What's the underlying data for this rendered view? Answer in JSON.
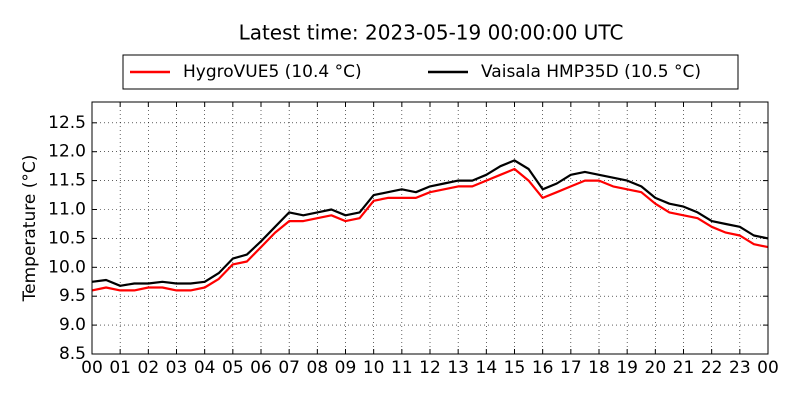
{
  "chart_data": {
    "type": "line",
    "title": "Latest time: 2023-05-19 00:00:00 UTC",
    "y_label": "Temperature (°C)",
    "x": [
      0,
      0.5,
      1,
      1.5,
      2,
      2.5,
      3,
      3.5,
      4,
      4.5,
      5,
      5.5,
      6,
      6.5,
      7,
      7.5,
      8,
      8.5,
      9,
      9.5,
      10,
      10.5,
      11,
      11.5,
      12,
      12.5,
      13,
      13.5,
      14,
      14.5,
      15,
      15.5,
      16,
      16.5,
      17,
      17.5,
      18,
      18.5,
      19,
      19.5,
      20,
      20.5,
      21,
      21.5,
      22,
      22.5,
      23,
      23.5,
      24
    ],
    "series": [
      {
        "name": "HygroVUE5 (10.4 °C)",
        "color": "#ff0000",
        "values": [
          9.6,
          9.65,
          9.6,
          9.6,
          9.65,
          9.65,
          9.6,
          9.6,
          9.65,
          9.8,
          10.05,
          10.1,
          10.35,
          10.6,
          10.8,
          10.8,
          10.85,
          10.9,
          10.8,
          10.85,
          11.15,
          11.2,
          11.2,
          11.2,
          11.3,
          11.35,
          11.4,
          11.4,
          11.5,
          11.6,
          11.7,
          11.5,
          11.2,
          11.3,
          11.4,
          11.5,
          11.5,
          11.4,
          11.35,
          11.3,
          11.1,
          10.95,
          10.9,
          10.85,
          10.7,
          10.6,
          10.55,
          10.4,
          10.35
        ]
      },
      {
        "name": "Vaisala HMP35D (10.5 °C)",
        "color": "#000000",
        "values": [
          9.75,
          9.78,
          9.68,
          9.72,
          9.72,
          9.75,
          9.72,
          9.72,
          9.75,
          9.9,
          10.15,
          10.22,
          10.45,
          10.7,
          10.95,
          10.9,
          10.95,
          11.0,
          10.9,
          10.95,
          11.25,
          11.3,
          11.35,
          11.3,
          11.4,
          11.45,
          11.5,
          11.5,
          11.6,
          11.75,
          11.85,
          11.7,
          11.35,
          11.45,
          11.6,
          11.65,
          11.6,
          11.55,
          11.5,
          11.4,
          11.2,
          11.1,
          11.05,
          10.95,
          10.8,
          10.75,
          10.7,
          10.55,
          10.5
        ]
      }
    ],
    "xlim": [
      0,
      24
    ],
    "xticks": [
      {
        "value": 0,
        "label": "00"
      },
      {
        "value": 1,
        "label": "01"
      },
      {
        "value": 2,
        "label": "02"
      },
      {
        "value": 3,
        "label": "03"
      },
      {
        "value": 4,
        "label": "04"
      },
      {
        "value": 5,
        "label": "05"
      },
      {
        "value": 6,
        "label": "06"
      },
      {
        "value": 7,
        "label": "07"
      },
      {
        "value": 8,
        "label": "08"
      },
      {
        "value": 9,
        "label": "09"
      },
      {
        "value": 10,
        "label": "10"
      },
      {
        "value": 11,
        "label": "11"
      },
      {
        "value": 12,
        "label": "12"
      },
      {
        "value": 13,
        "label": "13"
      },
      {
        "value": 14,
        "label": "14"
      },
      {
        "value": 15,
        "label": "15"
      },
      {
        "value": 16,
        "label": "16"
      },
      {
        "value": 17,
        "label": "17"
      },
      {
        "value": 18,
        "label": "18"
      },
      {
        "value": 19,
        "label": "19"
      },
      {
        "value": 20,
        "label": "20"
      },
      {
        "value": 21,
        "label": "21"
      },
      {
        "value": 22,
        "label": "22"
      },
      {
        "value": 23,
        "label": "23"
      },
      {
        "value": 24,
        "label": "00"
      }
    ],
    "ylim": [
      8.5,
      12.86
    ],
    "yticks": [
      8.5,
      {
        "value": 9,
        "label": "9.0"
      },
      9.5,
      {
        "value": 10,
        "label": "10.0"
      },
      10.5,
      {
        "value": 11,
        "label": "11.0"
      },
      11.5,
      {
        "value": 12,
        "label": "12.0"
      },
      12.5
    ],
    "grid": true,
    "legend": "top"
  }
}
